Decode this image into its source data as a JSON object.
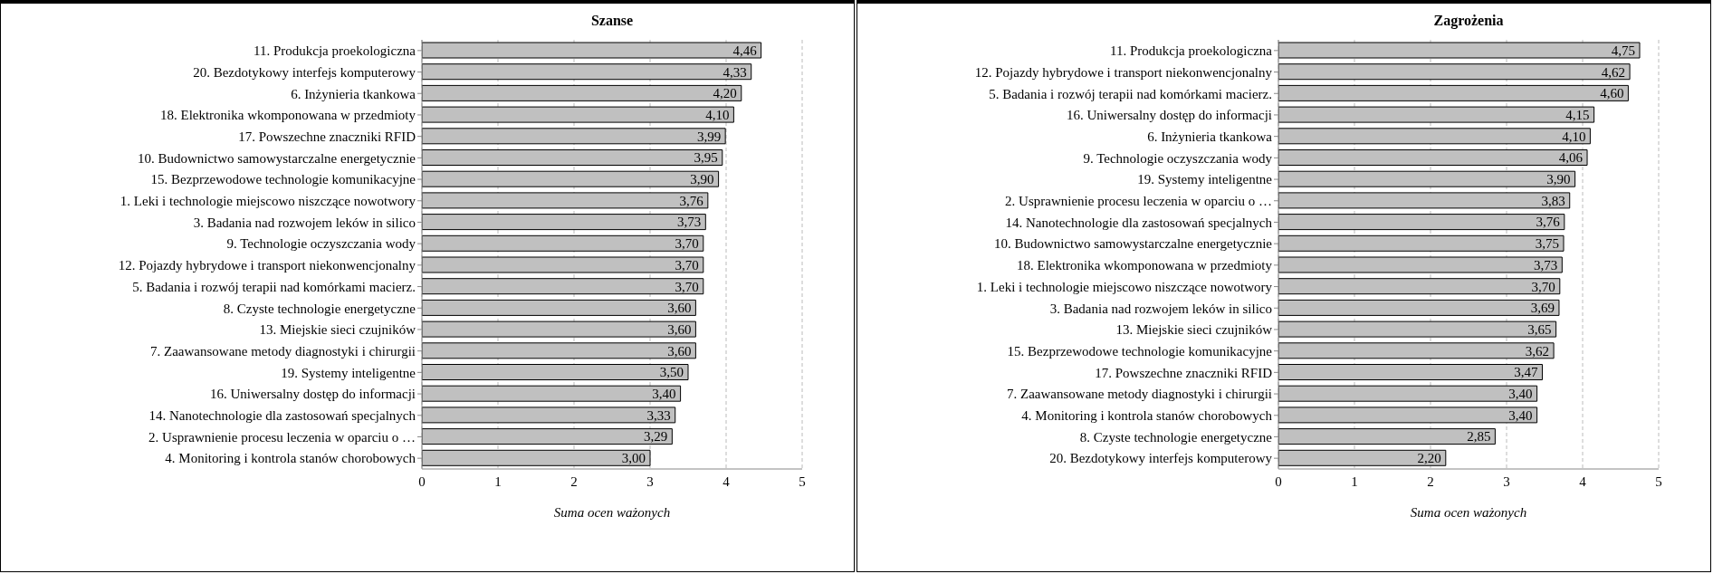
{
  "chart_data": [
    {
      "type": "bar",
      "orientation": "horizontal",
      "title": "Szanse",
      "xlabel": "Suma ocen ważonych",
      "categories": [
        "11. Produkcja proekologiczna",
        "20. Bezdotykowy interfejs komputerowy",
        "6. Inżynieria tkankowa",
        "18. Elektronika wkomponowana w przedmioty",
        "17. Powszechne znaczniki RFID",
        "10. Budownictwo samowystarczalne energetycznie",
        "15. Bezprzewodowe technologie komunikacyjne",
        "1. Leki i technologie miejscowo niszczące nowotwory",
        "3. Badania nad rozwojem leków in silico",
        "9. Technologie oczyszczania wody",
        "12. Pojazdy hybrydowe i transport niekonwencjonalny",
        "5. Badania i rozwój terapii nad komórkami macierz.",
        "8. Czyste technologie energetyczne",
        "13. Miejskie sieci czujników",
        "7. Zaawansowane metody diagnostyki i chirurgii",
        "19. Systemy inteligentne",
        "16. Uniwersalny dostęp do informacji",
        "14. Nanotechnologie dla zastosowań specjalnych",
        "2. Usprawnienie procesu leczenia w oparciu o …",
        "4. Monitoring i kontrola stanów chorobowych"
      ],
      "values": [
        4.46,
        4.33,
        4.2,
        4.1,
        3.99,
        3.95,
        3.9,
        3.76,
        3.73,
        3.7,
        3.7,
        3.7,
        3.6,
        3.6,
        3.6,
        3.5,
        3.4,
        3.33,
        3.29,
        3.0
      ],
      "value_labels": [
        "4,46",
        "4,33",
        "4,20",
        "4,10",
        "3,99",
        "3,95",
        "3,90",
        "3,76",
        "3,73",
        "3,70",
        "3,70",
        "3,70",
        "3,60",
        "3,60",
        "3,60",
        "3,50",
        "3,40",
        "3,33",
        "3,29",
        "3,00"
      ],
      "color": "#c0c0c0",
      "xlim": [
        0,
        5
      ],
      "xticks": [
        0,
        1,
        2,
        3,
        4,
        5
      ],
      "grid": "x",
      "legend": false
    },
    {
      "type": "bar",
      "orientation": "horizontal",
      "title": "Zagrożenia",
      "xlabel": "Suma ocen ważonych",
      "categories": [
        "11. Produkcja proekologiczna",
        "12. Pojazdy hybrydowe i transport niekonwencjonalny",
        "5. Badania i rozwój terapii nad komórkami macierz.",
        "16. Uniwersalny dostęp do informacji",
        "6. Inżynieria tkankowa",
        "9. Technologie oczyszczania wody",
        "19. Systemy inteligentne",
        "2. Usprawnienie procesu leczenia w oparciu o …",
        "14. Nanotechnologie dla zastosowań specjalnych",
        "10. Budownictwo samowystarczalne energetycznie",
        "18. Elektronika wkomponowana w przedmioty",
        "1. Leki i technologie miejscowo niszczące nowotwory",
        "3. Badania nad rozwojem leków in silico",
        "13. Miejskie sieci czujników",
        "15. Bezprzewodowe technologie komunikacyjne",
        "17. Powszechne znaczniki RFID",
        "7. Zaawansowane metody diagnostyki i chirurgii",
        "4. Monitoring i kontrola stanów chorobowych",
        "8. Czyste technologie energetyczne",
        "20. Bezdotykowy interfejs komputerowy"
      ],
      "values": [
        4.75,
        4.62,
        4.6,
        4.15,
        4.1,
        4.06,
        3.9,
        3.83,
        3.76,
        3.75,
        3.73,
        3.7,
        3.69,
        3.65,
        3.62,
        3.47,
        3.4,
        3.4,
        2.85,
        2.2
      ],
      "value_labels": [
        "4,75",
        "4,62",
        "4,60",
        "4,15",
        "4,10",
        "4,06",
        "3,90",
        "3,83",
        "3,76",
        "3,75",
        "3,73",
        "3,70",
        "3,69",
        "3,65",
        "3,62",
        "3,47",
        "3,40",
        "3,40",
        "2,85",
        "2,20"
      ],
      "color": "#c0c0c0",
      "xlim": [
        0,
        5
      ],
      "xticks": [
        0,
        1,
        2,
        3,
        4,
        5
      ],
      "grid": "x",
      "legend": false
    }
  ]
}
